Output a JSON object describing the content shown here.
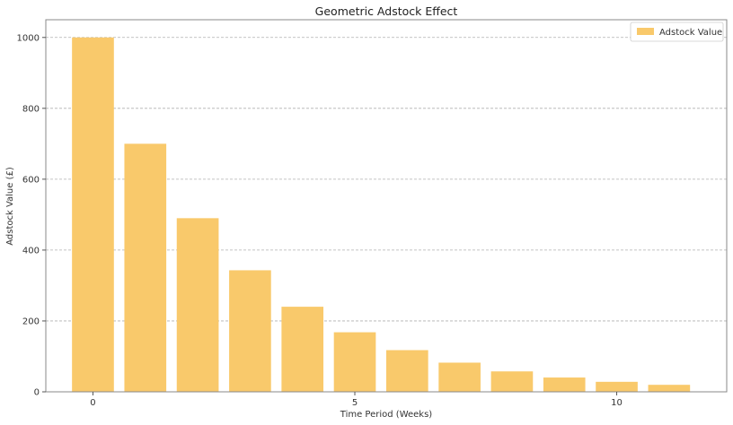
{
  "chart_data": {
    "type": "bar",
    "title": "Geometric Adstock Effect",
    "xlabel": "Time Period (Weeks)",
    "ylabel": "Adstock Value (£)",
    "x": [
      0,
      1,
      2,
      3,
      4,
      5,
      6,
      7,
      8,
      9,
      10,
      11
    ],
    "series": [
      {
        "name": "Adstock Value",
        "values": [
          1000,
          700,
          490,
          343,
          240.1,
          168.07,
          117.65,
          82.35,
          57.65,
          40.35,
          28.25,
          19.77
        ],
        "color": "#f9c96b"
      }
    ],
    "xticks": [
      0,
      5,
      10
    ],
    "yticks": [
      0,
      200,
      400,
      600,
      800,
      1000
    ],
    "xlim": [
      -0.9,
      12.1
    ],
    "ylim": [
      0,
      1050
    ],
    "grid": "y-dashed",
    "legend_position": "top-right"
  }
}
